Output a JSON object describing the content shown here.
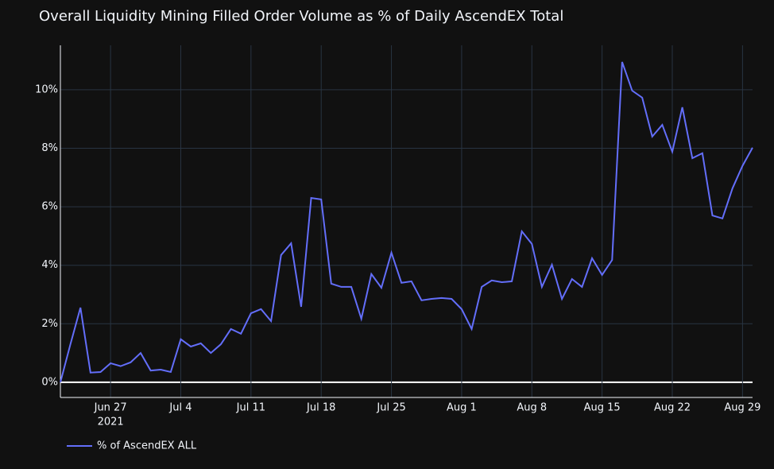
{
  "chart_data": {
    "type": "line",
    "title": "Overall Liquidity Mining Filled Order Volume as % of Daily AscendEX Total",
    "x": [
      "2021-06-22",
      "2021-06-23",
      "2021-06-24",
      "2021-06-25",
      "2021-06-26",
      "2021-06-27",
      "2021-06-28",
      "2021-06-29",
      "2021-06-30",
      "2021-07-01",
      "2021-07-02",
      "2021-07-03",
      "2021-07-04",
      "2021-07-05",
      "2021-07-06",
      "2021-07-07",
      "2021-07-08",
      "2021-07-09",
      "2021-07-10",
      "2021-07-11",
      "2021-07-12",
      "2021-07-13",
      "2021-07-14",
      "2021-07-15",
      "2021-07-16",
      "2021-07-17",
      "2021-07-18",
      "2021-07-19",
      "2021-07-20",
      "2021-07-21",
      "2021-07-22",
      "2021-07-23",
      "2021-07-24",
      "2021-07-25",
      "2021-07-26",
      "2021-07-27",
      "2021-07-28",
      "2021-07-29",
      "2021-07-30",
      "2021-07-31",
      "2021-08-01",
      "2021-08-02",
      "2021-08-03",
      "2021-08-04",
      "2021-08-05",
      "2021-08-06",
      "2021-08-07",
      "2021-08-08",
      "2021-08-09",
      "2021-08-10",
      "2021-08-11",
      "2021-08-12",
      "2021-08-13",
      "2021-08-14",
      "2021-08-15",
      "2021-08-16",
      "2021-08-17",
      "2021-08-18",
      "2021-08-19",
      "2021-08-20",
      "2021-08-21",
      "2021-08-22",
      "2021-08-23",
      "2021-08-24",
      "2021-08-25",
      "2021-08-26",
      "2021-08-27",
      "2021-08-28",
      "2021-08-29",
      "2021-08-30"
    ],
    "series": [
      {
        "name": "% of AscendEX ALL",
        "color": "#636efa",
        "values": [
          0,
          1.3,
          2.55,
          0.33,
          0.35,
          0.65,
          0.55,
          0.68,
          1.0,
          0.4,
          0.43,
          0.35,
          1.47,
          1.22,
          1.33,
          1.0,
          1.3,
          1.82,
          1.66,
          2.36,
          2.5,
          2.09,
          4.35,
          4.75,
          2.58,
          6.3,
          6.25,
          3.37,
          3.26,
          3.26,
          2.17,
          3.7,
          3.23,
          4.43,
          3.4,
          3.45,
          2.8,
          2.85,
          2.88,
          2.85,
          2.5,
          1.82,
          3.26,
          3.48,
          3.42,
          3.45,
          5.16,
          4.73,
          3.26,
          4.02,
          2.85,
          3.53,
          3.26,
          4.24,
          3.67,
          4.18,
          10.95,
          9.97,
          9.73,
          8.4,
          8.8,
          7.88,
          9.4,
          7.66,
          7.83,
          5.7,
          5.6,
          6.63,
          7.4,
          8.02
        ]
      }
    ],
    "xlim": [
      "2021-06-22",
      "2021-08-30"
    ],
    "xticks": [
      {
        "value": "2021-06-27",
        "label": "Jun 27"
      },
      {
        "value": "2021-07-04",
        "label": "Jul 4"
      },
      {
        "value": "2021-07-11",
        "label": "Jul 11"
      },
      {
        "value": "2021-07-18",
        "label": "Jul 18"
      },
      {
        "value": "2021-07-25",
        "label": "Jul 25"
      },
      {
        "value": "2021-08-01",
        "label": "Aug 1"
      },
      {
        "value": "2021-08-08",
        "label": "Aug 8"
      },
      {
        "value": "2021-08-15",
        "label": "Aug 15"
      },
      {
        "value": "2021-08-22",
        "label": "Aug 22"
      },
      {
        "value": "2021-08-29",
        "label": "Aug 29"
      }
    ],
    "x_year_label": "2021",
    "ylim": [
      -0.52,
      11.52
    ],
    "yticks": [
      {
        "value": 0,
        "label": "0%"
      },
      {
        "value": 2,
        "label": "2%"
      },
      {
        "value": 4,
        "label": "4%"
      },
      {
        "value": 6,
        "label": "6%"
      },
      {
        "value": 8,
        "label": "8%"
      },
      {
        "value": 10,
        "label": "10%"
      }
    ],
    "grid": true,
    "legend": "bottom-left"
  }
}
